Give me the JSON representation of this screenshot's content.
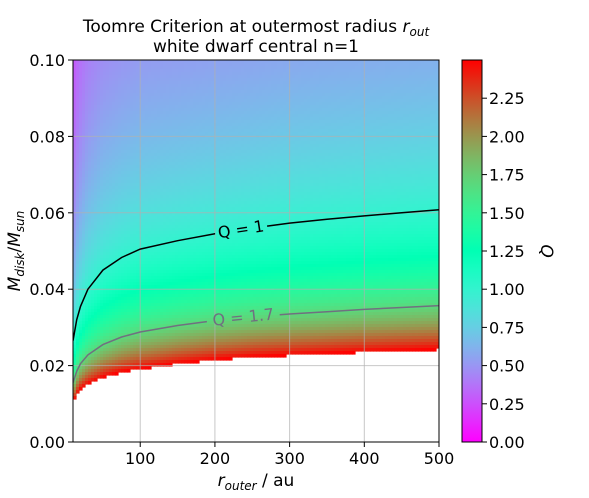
{
  "chart_data": {
    "type": "heatmap",
    "title_main": "Toomre Criterion at outermost radius ",
    "title_var": "r",
    "title_var_sub": "out",
    "subtitle": "white dwarf central n=1",
    "xlabel_var": "r",
    "xlabel_sub": "outer",
    "xlabel_unit": " / au",
    "ylabel_var1": "M",
    "ylabel_sub1": "disk",
    "ylabel_sep": "/",
    "ylabel_var2": "M",
    "ylabel_sub2": "sun",
    "colorbar_label": "Q",
    "xlim": [
      10,
      500
    ],
    "ylim": [
      0.0,
      0.1
    ],
    "clim": [
      0.0,
      2.5
    ],
    "x_ticks": [
      100,
      200,
      300,
      400,
      500
    ],
    "y_ticks": [
      0.0,
      0.02,
      0.04,
      0.06,
      0.08,
      0.1
    ],
    "x_tick_labels": [
      "100",
      "200",
      "300",
      "400",
      "500"
    ],
    "y_tick_labels": [
      "0.00",
      "0.02",
      "0.04",
      "0.06",
      "0.08",
      "0.10"
    ],
    "colorbar_ticks": [
      0.0,
      0.25,
      0.5,
      0.75,
      1.0,
      1.25,
      1.5,
      1.75,
      2.0,
      2.25
    ],
    "colorbar_tick_labels": [
      "0.00",
      "0.25",
      "0.50",
      "0.75",
      "1.00",
      "1.25",
      "1.50",
      "1.75",
      "2.00",
      "2.25"
    ],
    "colormap": "rainbow",
    "grid": true,
    "masked_above_Q": 2.5,
    "contours": [
      {
        "level": 1.0,
        "label": "Q = 1",
        "color": "#000000",
        "x": [
          10,
          15,
          20,
          30,
          50,
          75,
          100,
          150,
          200,
          250,
          300,
          350,
          400,
          450,
          500
        ],
        "y": [
          0.0265,
          0.032,
          0.0355,
          0.04,
          0.045,
          0.0483,
          0.0505,
          0.0527,
          0.0545,
          0.056,
          0.0573,
          0.0583,
          0.0592,
          0.06,
          0.0608
        ]
      },
      {
        "level": 1.7,
        "label": "Q = 1.7",
        "color": "#707080",
        "x": [
          10,
          15,
          20,
          30,
          50,
          75,
          100,
          150,
          200,
          250,
          300,
          350,
          400,
          450,
          500
        ],
        "y": [
          0.0155,
          0.0185,
          0.0205,
          0.0228,
          0.0255,
          0.0275,
          0.0288,
          0.0305,
          0.0318,
          0.0328,
          0.0335,
          0.0341,
          0.0347,
          0.0352,
          0.0357
        ]
      }
    ],
    "mask_boundary": {
      "x": [
        10,
        15,
        20,
        30,
        50,
        75,
        100,
        150,
        200,
        250,
        300,
        350,
        400,
        450,
        500
      ],
      "y": [
        0.0105,
        0.0128,
        0.0142,
        0.0158,
        0.0175,
        0.0188,
        0.0197,
        0.0208,
        0.0216,
        0.0222,
        0.0228,
        0.0232,
        0.0236,
        0.0239,
        0.0242
      ]
    }
  }
}
